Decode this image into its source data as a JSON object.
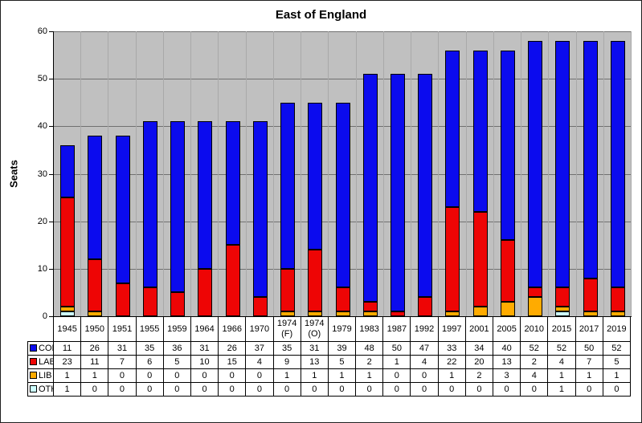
{
  "chart_data": {
    "type": "bar",
    "stacked": true,
    "title": "East of England",
    "ylabel": "Seats",
    "ylim": [
      0,
      60
    ],
    "ytick_step": 10,
    "grid": true,
    "plot_bg": "#c0c0c0",
    "legend_position": "table-left",
    "categories": [
      "1945",
      "1950",
      "1951",
      "1955",
      "1959",
      "1964",
      "1966",
      "1970",
      "1974 (F)",
      "1974 (O)",
      "1979",
      "1983",
      "1987",
      "1992",
      "1997",
      "2001",
      "2005",
      "2010",
      "2015",
      "2017",
      "2019"
    ],
    "series": [
      {
        "name": "CON",
        "color": "#0b0bee",
        "values": [
          11,
          26,
          31,
          35,
          36,
          31,
          26,
          37,
          35,
          31,
          39,
          48,
          50,
          47,
          33,
          34,
          40,
          52,
          52,
          50,
          52
        ]
      },
      {
        "name": "LAB",
        "color": "#ee0505",
        "values": [
          23,
          11,
          7,
          6,
          5,
          10,
          15,
          4,
          9,
          13,
          5,
          2,
          1,
          4,
          22,
          20,
          13,
          2,
          4,
          7,
          5
        ]
      },
      {
        "name": "LIB",
        "color": "#ffab00",
        "values": [
          1,
          1,
          0,
          0,
          0,
          0,
          0,
          0,
          1,
          1,
          1,
          1,
          0,
          0,
          1,
          2,
          3,
          4,
          1,
          1,
          1
        ]
      },
      {
        "name": "OTH",
        "color": "#ccffff",
        "values": [
          1,
          0,
          0,
          0,
          0,
          0,
          0,
          0,
          0,
          0,
          0,
          0,
          0,
          0,
          0,
          0,
          0,
          0,
          1,
          0,
          0
        ]
      }
    ],
    "stack_order_bottom_to_top": [
      "OTH",
      "LIB",
      "LAB",
      "CON"
    ]
  }
}
